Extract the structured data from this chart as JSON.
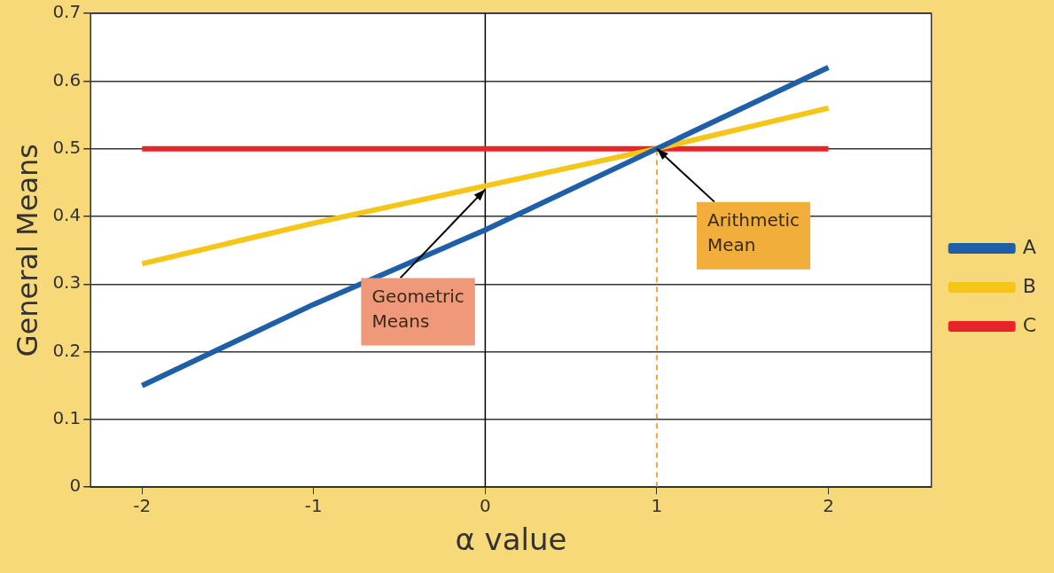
{
  "chart_data": {
    "type": "line",
    "xlabel": "α value",
    "ylabel": "General Means",
    "x": [
      -2,
      -1,
      0,
      1,
      2
    ],
    "series": [
      {
        "name": "A",
        "color": "#1f5fa8",
        "values": [
          0.15,
          0.27,
          0.38,
          0.5,
          0.62
        ]
      },
      {
        "name": "B",
        "color": "#f5c518",
        "values": [
          0.33,
          0.39,
          0.445,
          0.5,
          0.56
        ]
      },
      {
        "name": "C",
        "color": "#e8242a",
        "values": [
          0.5,
          0.5,
          0.5,
          0.5,
          0.5
        ]
      },
      {
        "color": "#f2a53a",
        "x": [
          1,
          1
        ],
        "values": [
          0,
          0.5
        ],
        "line_style": "dashed"
      }
    ],
    "xlim": [
      -2.3,
      2.6
    ],
    "xticks": [
      -2,
      -1,
      0,
      1,
      2
    ],
    "ylim": [
      0,
      0.7
    ],
    "yticks": [
      0,
      0.1,
      0.2,
      0.3,
      0.4,
      0.5,
      0.6,
      0.7
    ],
    "grid": "y",
    "legend": "right",
    "marker": "none",
    "line_style": "solid",
    "ref_lines": [
      {
        "axis": "x",
        "value": 0,
        "color": "#000000"
      }
    ],
    "annotations": [
      {
        "text": "Geometric Means",
        "x": 0,
        "y": 0.44
      },
      {
        "text": "Arithmetic Mean",
        "x": 1,
        "y": 0.5
      }
    ]
  }
}
